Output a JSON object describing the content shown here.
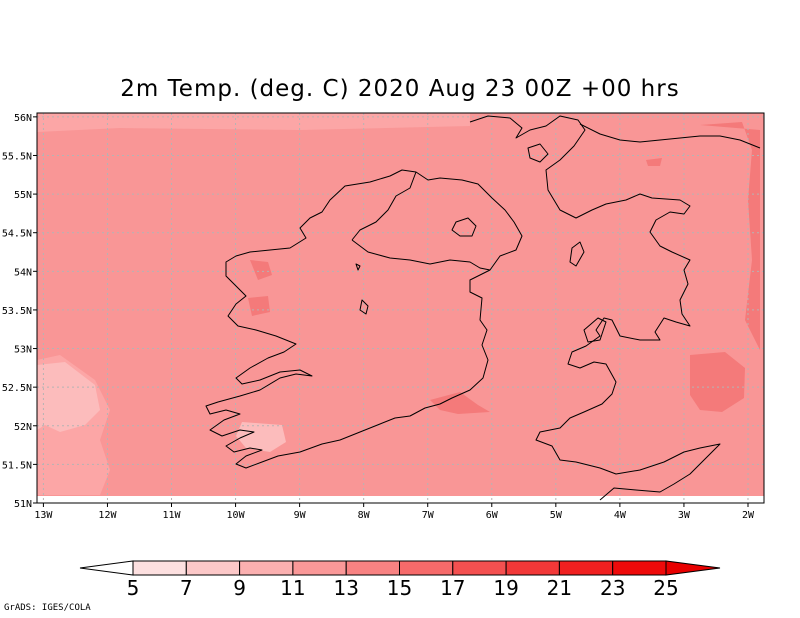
{
  "title": "2m Temp. (deg. C) 2020 Aug 23 00Z +00 hrs",
  "credit": "GrADS: IGES/COLA",
  "map": {
    "lon_range": [
      -13.1,
      -1.75
    ],
    "lat_range": [
      51.0,
      56.05
    ],
    "lat_ticks": [
      "56N",
      "55.5N",
      "55N",
      "54.5N",
      "54N",
      "53.5N",
      "53N",
      "52.5N",
      "52N",
      "51.5N",
      "51N"
    ],
    "lon_ticks": [
      "13W",
      "12W",
      "11W",
      "10W",
      "9W",
      "8W",
      "7W",
      "6W",
      "5W",
      "4W",
      "3W",
      "2W"
    ],
    "grid": "dotted",
    "dominant_value_range": "13-15",
    "colors": {
      "c9_11": "#fcbcbc",
      "c11_13": "#fca6a6",
      "c13_15": "#f99696",
      "c15_17": "#f47a7a",
      "coast": "#000000"
    }
  },
  "colorbar": {
    "labels": [
      "5",
      "7",
      "9",
      "11",
      "13",
      "15",
      "17",
      "19",
      "21",
      "23",
      "25"
    ],
    "colors": [
      "#ffffff",
      "#fde0e0",
      "#fcc8c8",
      "#fbb0b0",
      "#fa9898",
      "#f88282",
      "#f66a6a",
      "#f45050",
      "#f23838",
      "#f02020",
      "#ee0a0a",
      "#e80000"
    ]
  }
}
